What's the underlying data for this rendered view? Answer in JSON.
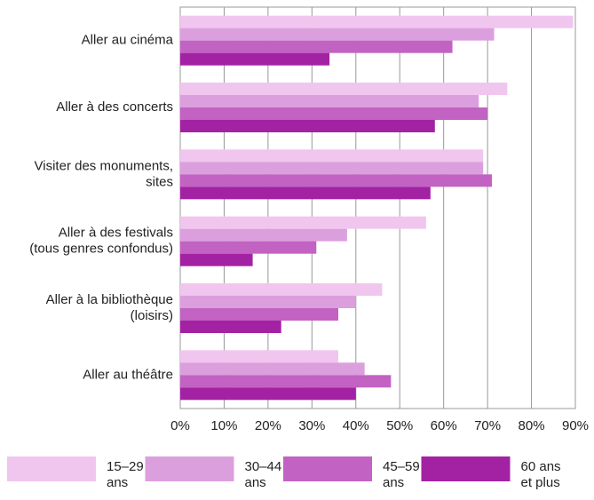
{
  "chart_data": {
    "type": "hbar",
    "categories": [
      "Aller au cinéma",
      "Aller à des concerts",
      "Visiter des monuments,\nsites",
      "Aller à des festivals\n(tous genres confondus)",
      "Aller à la bibliothèque\n(loisirs)",
      "Aller au théâtre"
    ],
    "series": [
      {
        "name": "15–29\nans",
        "color": "#f0c6ee",
        "values": [
          89.5,
          74.5,
          69,
          56,
          46,
          36
        ]
      },
      {
        "name": "30–44\nans",
        "color": "#dc9fde",
        "values": [
          71.5,
          68,
          69,
          38,
          40,
          42
        ]
      },
      {
        "name": "45–59\nans",
        "color": "#c262c2",
        "values": [
          62,
          70,
          71,
          31,
          36,
          48
        ]
      },
      {
        "name": "60 ans\net plus",
        "color": "#a322a3",
        "values": [
          34,
          58,
          57,
          16.5,
          23,
          40
        ]
      }
    ],
    "xlim": [
      0,
      90
    ],
    "xticks": [
      {
        "value": 0,
        "label": "0%"
      },
      {
        "value": 10,
        "label": "10%"
      },
      {
        "value": 20,
        "label": "20%"
      },
      {
        "value": 30,
        "label": "30%"
      },
      {
        "value": 40,
        "label": "40%"
      },
      {
        "value": 50,
        "label": "50%"
      },
      {
        "value": 60,
        "label": "60%"
      },
      {
        "value": 70,
        "label": "70%"
      },
      {
        "value": 80,
        "label": "80%"
      },
      {
        "value": 90,
        "label": "90%"
      }
    ],
    "grid": true
  }
}
